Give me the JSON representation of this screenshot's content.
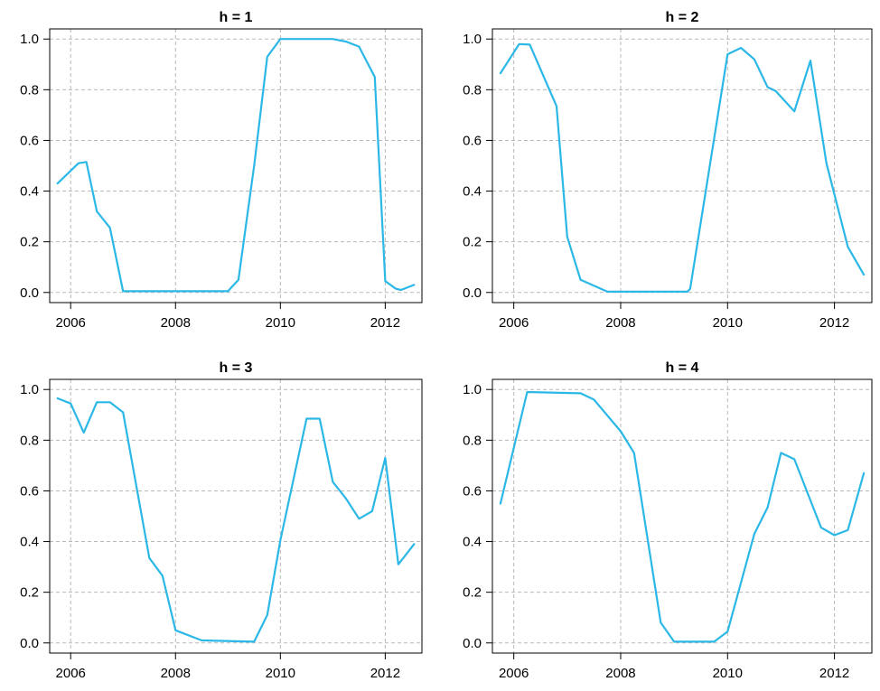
{
  "chart_data": [
    {
      "type": "line",
      "title": "h = 1",
      "xlim": [
        2005.6,
        2012.7
      ],
      "ylim": [
        -0.04,
        1.04
      ],
      "xticks": [
        2006,
        2008,
        2010,
        2012
      ],
      "yticks": [
        0.0,
        0.2,
        0.4,
        0.6,
        0.8,
        1.0
      ],
      "ytick_labels": [
        "0.0",
        "0.2",
        "0.4",
        "0.6",
        "0.8",
        "1.0"
      ],
      "grid": true,
      "color": "#2bb8e6",
      "series": [
        {
          "x": [
            2005.75,
            2006.0,
            2006.15,
            2006.3,
            2006.5,
            2006.75,
            2007.0,
            2009.0,
            2009.2,
            2009.5,
            2009.75,
            2010.0,
            2011.0,
            2011.25,
            2011.5,
            2011.8,
            2012.0,
            2012.2,
            2012.3,
            2012.55
          ],
          "y": [
            0.43,
            0.48,
            0.51,
            0.515,
            0.32,
            0.255,
            0.005,
            0.005,
            0.05,
            0.5,
            0.93,
            1.0,
            1.0,
            0.99,
            0.97,
            0.85,
            0.045,
            0.015,
            0.01,
            0.03
          ]
        }
      ]
    },
    {
      "type": "line",
      "title": "h = 2",
      "xlim": [
        2005.6,
        2012.7
      ],
      "ylim": [
        -0.04,
        1.04
      ],
      "xticks": [
        2006,
        2008,
        2010,
        2012
      ],
      "yticks": [
        0.0,
        0.2,
        0.4,
        0.6,
        0.8,
        1.0
      ],
      "ytick_labels": [
        "0.0",
        "0.2",
        "0.4",
        "0.6",
        "0.8",
        "1.0"
      ],
      "grid": true,
      "color": "#2bb8e6",
      "series": [
        {
          "x": [
            2005.75,
            2006.1,
            2006.3,
            2006.8,
            2007.0,
            2007.25,
            2007.75,
            2009.25,
            2009.3,
            2010.0,
            2010.25,
            2010.5,
            2010.75,
            2010.9,
            2011.25,
            2011.55,
            2011.85,
            2012.25,
            2012.55
          ],
          "y": [
            0.865,
            0.98,
            0.978,
            0.735,
            0.22,
            0.05,
            0.003,
            0.003,
            0.015,
            0.94,
            0.965,
            0.92,
            0.81,
            0.795,
            0.715,
            0.915,
            0.51,
            0.18,
            0.07
          ]
        }
      ]
    },
    {
      "type": "line",
      "title": "h = 3",
      "xlim": [
        2005.6,
        2012.7
      ],
      "ylim": [
        -0.04,
        1.04
      ],
      "xticks": [
        2006,
        2008,
        2010,
        2012
      ],
      "yticks": [
        0.0,
        0.2,
        0.4,
        0.6,
        0.8,
        1.0
      ],
      "ytick_labels": [
        "0.0",
        "0.2",
        "0.4",
        "0.6",
        "0.8",
        "1.0"
      ],
      "grid": true,
      "color": "#2bb8e6",
      "series": [
        {
          "x": [
            2005.75,
            2006.0,
            2006.25,
            2006.5,
            2006.75,
            2007.0,
            2007.5,
            2007.75,
            2008.0,
            2008.5,
            2009.5,
            2009.75,
            2010.0,
            2010.5,
            2010.75,
            2011.0,
            2011.25,
            2011.5,
            2011.75,
            2012.0,
            2012.25,
            2012.55
          ],
          "y": [
            0.965,
            0.945,
            0.83,
            0.95,
            0.95,
            0.91,
            0.335,
            0.265,
            0.05,
            0.01,
            0.005,
            0.11,
            0.405,
            0.885,
            0.885,
            0.635,
            0.57,
            0.49,
            0.52,
            0.73,
            0.31,
            0.39
          ]
        }
      ]
    },
    {
      "type": "line",
      "title": "h = 4",
      "xlim": [
        2005.6,
        2012.7
      ],
      "ylim": [
        -0.04,
        1.04
      ],
      "xticks": [
        2006,
        2008,
        2010,
        2012
      ],
      "yticks": [
        0.0,
        0.2,
        0.4,
        0.6,
        0.8,
        1.0
      ],
      "ytick_labels": [
        "0.0",
        "0.2",
        "0.4",
        "0.6",
        "0.8",
        "1.0"
      ],
      "grid": true,
      "color": "#2bb8e6",
      "series": [
        {
          "x": [
            2005.75,
            2006.25,
            2007.25,
            2007.5,
            2008.0,
            2008.25,
            2008.75,
            2009.0,
            2009.75,
            2010.0,
            2010.5,
            2010.75,
            2011.0,
            2011.25,
            2011.75,
            2012.0,
            2012.25,
            2012.55
          ],
          "y": [
            0.55,
            0.99,
            0.985,
            0.96,
            0.835,
            0.75,
            0.08,
            0.005,
            0.005,
            0.045,
            0.43,
            0.535,
            0.75,
            0.725,
            0.455,
            0.425,
            0.445,
            0.67
          ]
        }
      ]
    }
  ]
}
